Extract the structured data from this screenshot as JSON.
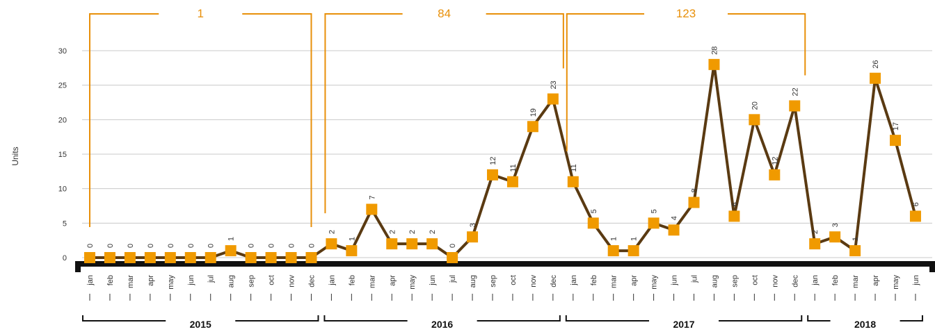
{
  "chart_data": {
    "type": "line",
    "ylabel": "Units",
    "ylim": [
      0,
      30
    ],
    "yticks": [
      0,
      5,
      10,
      15,
      20,
      25,
      30
    ],
    "grid": true,
    "line_color": "#5a3a12",
    "marker_color": "#f09a00",
    "annotation_color": "#e8900a",
    "groups": [
      {
        "name": "2015",
        "total": 1,
        "categories": [
          "jan",
          "feb",
          "mar",
          "apr",
          "may",
          "jun",
          "jul",
          "aug",
          "sep",
          "oct",
          "nov",
          "dec"
        ],
        "values": [
          0,
          0,
          0,
          0,
          0,
          0,
          0,
          1,
          0,
          0,
          0,
          0
        ]
      },
      {
        "name": "2016",
        "total": 84,
        "categories": [
          "jan",
          "feb",
          "mar",
          "apr",
          "may",
          "jun",
          "jul",
          "aug",
          "sep",
          "oct",
          "nov",
          "dec"
        ],
        "values": [
          2,
          1,
          7,
          2,
          2,
          2,
          0,
          3,
          12,
          11,
          19,
          23
        ]
      },
      {
        "name": "2017",
        "total": 123,
        "categories": [
          "jan",
          "feb",
          "mar",
          "apr",
          "may",
          "jun",
          "jul",
          "aug",
          "sep",
          "oct",
          "nov",
          "dec"
        ],
        "values": [
          11,
          5,
          1,
          1,
          5,
          4,
          8,
          28,
          6,
          20,
          12,
          22
        ]
      },
      {
        "name": "2018",
        "categories": [
          "jan",
          "feb",
          "mar",
          "apr",
          "may",
          "jun"
        ],
        "values": [
          2,
          3,
          1,
          26,
          17,
          6
        ]
      }
    ]
  }
}
